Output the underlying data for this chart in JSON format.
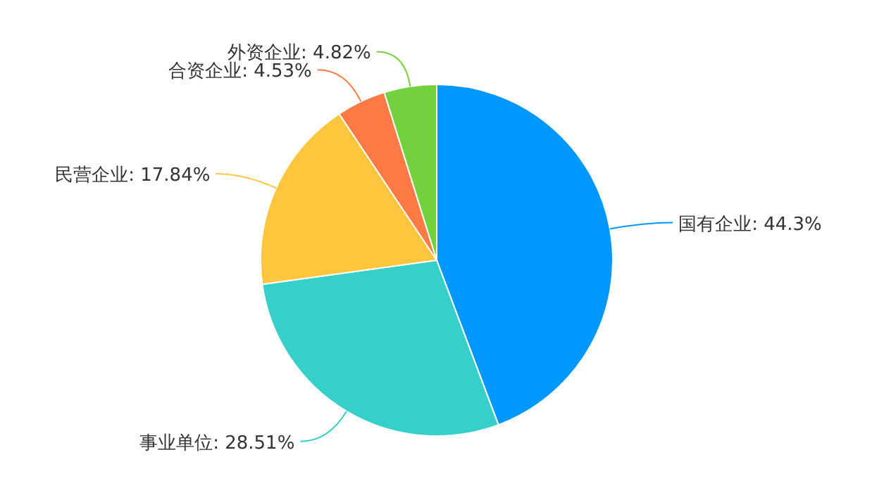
{
  "chart_data": {
    "type": "pie",
    "categories": [
      "国有企业",
      "事业单位",
      "民营企业",
      "合资企业",
      "外资企业"
    ],
    "values": [
      44.3,
      28.51,
      17.84,
      4.53,
      4.82
    ],
    "colors": [
      "#0098ff",
      "#36cfc9",
      "#ffc53d",
      "#ff7a45",
      "#73d13d"
    ],
    "value_labels": [
      ": 44.3%",
      ": 28.51%",
      ": 17.84%",
      ": 4.53%",
      ": 4.82%"
    ]
  }
}
